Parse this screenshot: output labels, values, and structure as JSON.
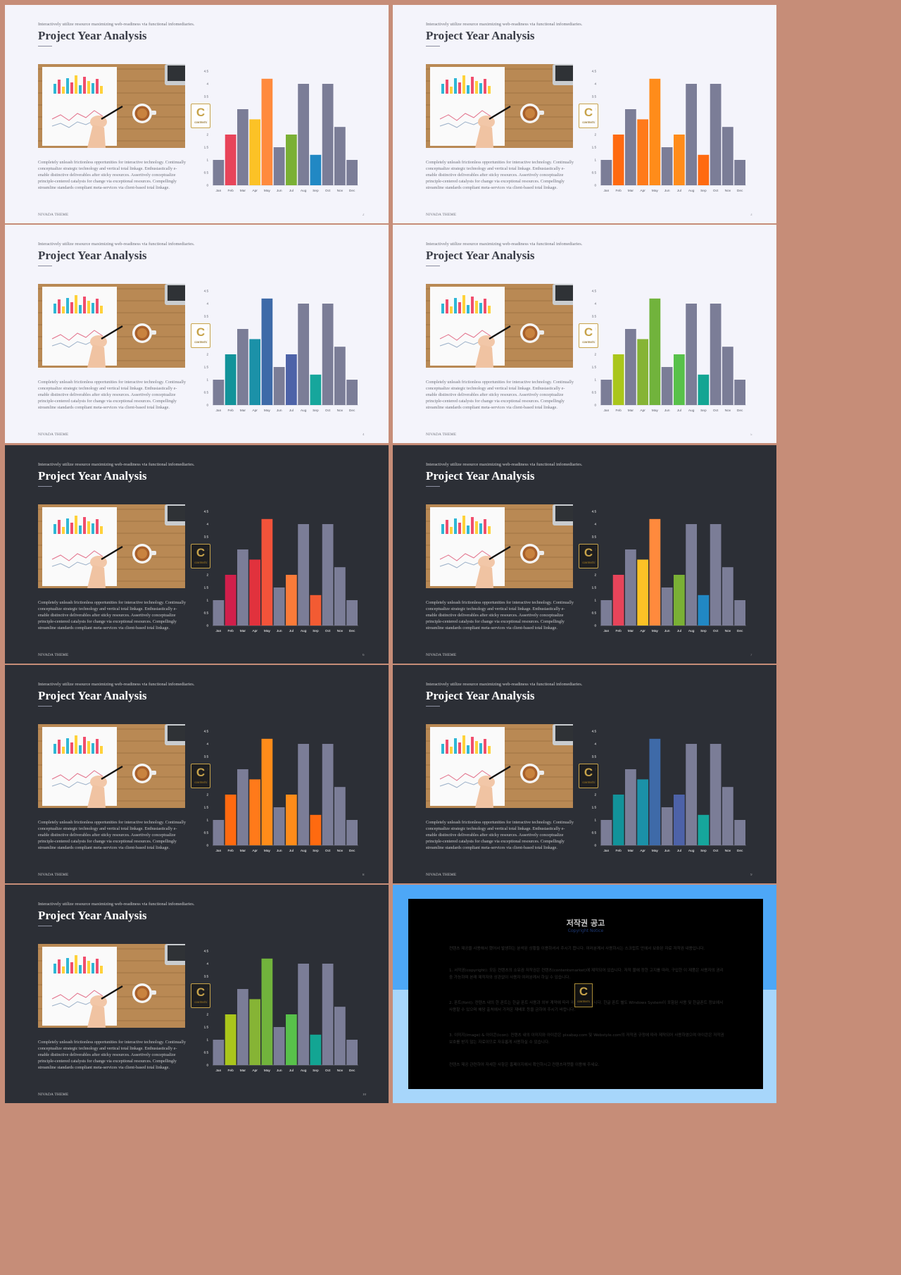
{
  "theme": {
    "kicker": "Interactively utilize resource maximizing web-readiness via functional infomediaries.",
    "title": "Project Year Analysis",
    "description": "Completely unleash frictionless opportunities for interactive technology. Continually conceptualize strategic technology and vertical total linkage. Enthusiastically e-enable distinctive deliverables after sticky resources. Assertively conceptualize principle-centered catalysts for change via exceptional resources. Compellingly streamline standards compliant meta-services via client-based total linkage.",
    "footer": "NIVADA THEME",
    "badge_letter": "C",
    "badge_text": "CONTENTS"
  },
  "chart_data": {
    "type": "bar",
    "categories": [
      "Jan",
      "Feb",
      "Mar",
      "Apr",
      "May",
      "Jun",
      "Jul",
      "Aug",
      "Sep",
      "Oct",
      "Nov",
      "Dec"
    ],
    "values": [
      1,
      2,
      3,
      2.6,
      4.2,
      1.5,
      2,
      4,
      1.2,
      4,
      2.3,
      1
    ],
    "ylim": [
      0,
      4.5
    ],
    "yticks": [
      "0",
      "0.5",
      "1",
      "1.5",
      "2",
      "2.5",
      "3",
      "3.5",
      "4",
      "4.5"
    ],
    "grid": false,
    "base_color": "#7b7d97"
  },
  "slides": [
    {
      "theme": "light",
      "page": "2",
      "colors": [
        "#7b7d97",
        "#e8445a",
        "#7b7d97",
        "#fcc226",
        "#ff8a3d",
        "#7b7d97",
        "#7ab035",
        "#7b7d97",
        "#2188c4",
        "#7b7d97",
        "#7b7d97",
        "#7b7d97"
      ]
    },
    {
      "theme": "light",
      "page": "3",
      "colors": [
        "#7b7d97",
        "#ff6a10",
        "#7b7d97",
        "#ff7a1a",
        "#ff8c1a",
        "#7b7d97",
        "#ff8c1a",
        "#7b7d97",
        "#ff6a10",
        "#7b7d97",
        "#7b7d97",
        "#7b7d97"
      ]
    },
    {
      "theme": "light",
      "page": "4",
      "colors": [
        "#7b7d97",
        "#12939a",
        "#7b7d97",
        "#1b91a8",
        "#3e6aa8",
        "#7b7d97",
        "#4d62a8",
        "#7b7d97",
        "#16a69c",
        "#7b7d97",
        "#7b7d97",
        "#7b7d97"
      ]
    },
    {
      "theme": "light",
      "page": "5",
      "colors": [
        "#7b7d97",
        "#aac61b",
        "#7b7d97",
        "#86b435",
        "#71b33c",
        "#7b7d97",
        "#58c14a",
        "#7b7d97",
        "#13a593",
        "#7b7d97",
        "#7b7d97",
        "#7b7d97"
      ]
    },
    {
      "theme": "dark",
      "page": "6",
      "colors": [
        "#7b7d97",
        "#d11f4b",
        "#7b7d97",
        "#e1323d",
        "#f2533a",
        "#7b7d97",
        "#fb7b39",
        "#7b7d97",
        "#f35b33",
        "#7b7d97",
        "#7b7d97",
        "#7b7d97"
      ]
    },
    {
      "theme": "dark",
      "page": "7",
      "colors": [
        "#7b7d97",
        "#e8445a",
        "#7b7d97",
        "#fcc226",
        "#ff8a3d",
        "#7b7d97",
        "#7ab035",
        "#7b7d97",
        "#2188c4",
        "#7b7d97",
        "#7b7d97",
        "#7b7d97"
      ]
    },
    {
      "theme": "dark",
      "page": "8",
      "colors": [
        "#7b7d97",
        "#ff6a10",
        "#7b7d97",
        "#ff7a1a",
        "#ff8c1a",
        "#7b7d97",
        "#ff8c1a",
        "#7b7d97",
        "#ff6a10",
        "#7b7d97",
        "#7b7d97",
        "#7b7d97"
      ]
    },
    {
      "theme": "dark",
      "page": "9",
      "colors": [
        "#7b7d97",
        "#12939a",
        "#7b7d97",
        "#1b91a8",
        "#3e6aa8",
        "#7b7d97",
        "#4d62a8",
        "#7b7d97",
        "#16a69c",
        "#7b7d97",
        "#7b7d97",
        "#7b7d97"
      ]
    },
    {
      "theme": "dark",
      "page": "10",
      "colors": [
        "#7b7d97",
        "#aac61b",
        "#7b7d97",
        "#86b435",
        "#71b33c",
        "#7b7d97",
        "#58c14a",
        "#7b7d97",
        "#13a593",
        "#7b7d97",
        "#7b7d97",
        "#7b7d97"
      ]
    }
  ],
  "notice": {
    "title": "저작권 공고",
    "subtitle": "Copyright Notice",
    "paragraphs": [
      "컨텐츠 제공을 사용해서 했어서 발생하는 분석된 상황들 이용하셔서 주시기 합니다. 여러분께서 사용하시는 스크립트 안에서 보호된 자료 저작권 내용입니다.",
      "1. 서작권(copyright): 모든 컨텐츠의 소유권 저작권은 컨텐츠(contentsmarket)에 제작되어 있습니다. 저작 물에 정한 고지를 따라, 구입한 이 제품은 사용자의 권리 중 가능하며 본래 제작자와 상관없이 사용자 여러분께서 하실 수 있습니다.",
      "2. 폰트(font): 컨텐츠 내의 한 폰트는 한글 폰트 사용과 외부 계약에 따라 제공되어 있습니다. 한글 폰트 별도 Windows System이 포함된 사용 및 한글폰트 정보에서 사용할 수 있으며 해당 출처에서 가져온 재배포 등을 금하여 주시기 바랍니다.",
      "3. 이미지(image) & 아이콘(icon): 컨텐츠 내의 이미지와 아이콘은 pixabay.com 및 Webstyle.com의 저작권 규정에 따라 제작되어 사용하였으며 아이콘은 저작권 보호를 받지 않는 자료이므로 자유롭게 사용하실 수 있습니다.",
      "컨텐츠 제공 관련하여 자세한 사항은 홈페이지에서 확인하시고 컨텐츠마켓을 이용해 주세요."
    ]
  }
}
